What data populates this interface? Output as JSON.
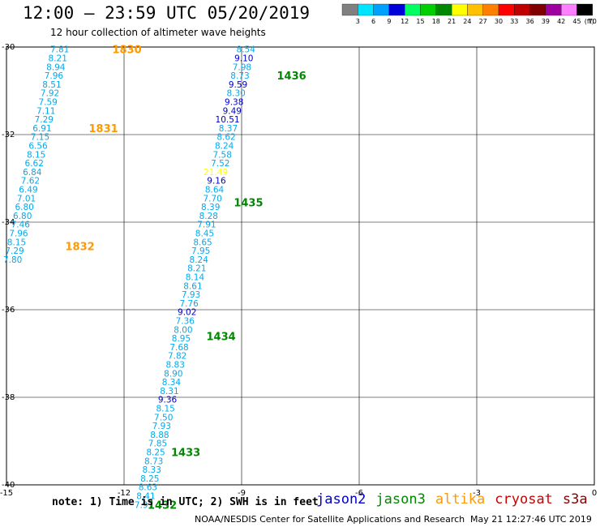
{
  "header": {
    "title": "12:00 – 23:59 UTC 05/20/2019",
    "subtitle": "12 hour collection of altimeter wave heights"
  },
  "colorbar": {
    "unit": "(ft)",
    "ticks": [
      "3",
      "6",
      "9",
      "12",
      "15",
      "18",
      "21",
      "24",
      "27",
      "30",
      "33",
      "36",
      "39",
      "42",
      "45",
      "70"
    ],
    "colors": [
      "#808080",
      "#00e5ff",
      "#00a0ff",
      "#0000dd",
      "#00ff60",
      "#00d000",
      "#008800",
      "#ffff00",
      "#ffc000",
      "#ff8000",
      "#ff0000",
      "#c00000",
      "#800000",
      "#a000a0",
      "#ff80ff",
      "#000000"
    ]
  },
  "footer": {
    "note": "note:  1) Time is in UTC;  2) SWH is in feet",
    "satellites": [
      {
        "name": "jason2",
        "color": "#0000cc"
      },
      {
        "name": "jason3",
        "color": "#008800"
      },
      {
        "name": "altika",
        "color": "#ff9900"
      },
      {
        "name": "cryosat",
        "color": "#cc0000"
      },
      {
        "name": "s3a",
        "color": "#880000"
      }
    ],
    "credit": "NOAA/NESDIS Center for Satellite Applications and Research",
    "timestamp": "May 21 12:27:46 UTC 2019"
  },
  "chart_data": {
    "type": "scatter",
    "title": "12:00 – 23:59 UTC 05/20/2019",
    "subtitle": "12 hour collection of altimeter wave heights",
    "xlim": [
      -15,
      0
    ],
    "ylim": [
      -40,
      -30
    ],
    "xticks": [
      "-15",
      "-12",
      "-9",
      "-6",
      "-3",
      "0"
    ],
    "yticks": [
      "-30",
      "-32",
      "-34",
      "-36",
      "-38",
      "-40"
    ],
    "grid": true,
    "tracks": [
      {
        "satellite": "altika",
        "points": [
          {
            "lon": -13.4,
            "lat": -30.05,
            "value": "7.81"
          },
          {
            "lon": -13.45,
            "lat": -30.25,
            "value": "8.21"
          },
          {
            "lon": -13.5,
            "lat": -30.45,
            "value": "8.94"
          },
          {
            "lon": -13.55,
            "lat": -30.65,
            "value": "7.96"
          },
          {
            "lon": -13.6,
            "lat": -30.85,
            "value": "8.51"
          },
          {
            "lon": -13.65,
            "lat": -31.05,
            "value": "7.92"
          },
          {
            "lon": -13.7,
            "lat": -31.25,
            "value": "7.59"
          },
          {
            "lon": -13.75,
            "lat": -31.45,
            "value": "7.11"
          },
          {
            "lon": -13.8,
            "lat": -31.65,
            "value": "7.29"
          },
          {
            "lon": -13.85,
            "lat": -31.85,
            "value": "6.91"
          },
          {
            "lon": -13.9,
            "lat": -32.05,
            "value": "7.15"
          },
          {
            "lon": -13.95,
            "lat": -32.25,
            "value": "6.56"
          },
          {
            "lon": -14.0,
            "lat": -32.45,
            "value": "8.15"
          },
          {
            "lon": -14.05,
            "lat": -32.65,
            "value": "6.62"
          },
          {
            "lon": -14.1,
            "lat": -32.85,
            "value": "6.84"
          },
          {
            "lon": -14.15,
            "lat": -33.05,
            "value": "7.62"
          },
          {
            "lon": -14.2,
            "lat": -33.25,
            "value": "6.49"
          },
          {
            "lon": -14.25,
            "lat": -33.45,
            "value": "7.01"
          },
          {
            "lon": -14.3,
            "lat": -33.65,
            "value": "6.80"
          },
          {
            "lon": -14.35,
            "lat": -33.85,
            "value": "6.80"
          },
          {
            "lon": -14.4,
            "lat": -34.05,
            "value": "7.46"
          },
          {
            "lon": -14.45,
            "lat": -34.25,
            "value": "7.96"
          },
          {
            "lon": -14.5,
            "lat": -34.45,
            "value": "8.15"
          },
          {
            "lon": -14.55,
            "lat": -34.65,
            "value": "7.29"
          },
          {
            "lon": -14.6,
            "lat": -34.85,
            "value": "7.80"
          }
        ],
        "time_labels": [
          {
            "lon": -12.3,
            "lat": -30.05,
            "label": "1830"
          },
          {
            "lon": -12.9,
            "lat": -31.85,
            "label": "1831"
          },
          {
            "lon": -13.5,
            "lat": -34.55,
            "label": "1832"
          }
        ]
      },
      {
        "satellite": "jason3",
        "points": [
          {
            "lon": -8.65,
            "lat": -30.05,
            "value": "8.54",
            "color": "#00aaee"
          },
          {
            "lon": -8.7,
            "lat": -30.25,
            "value": "9.10",
            "color": "#0000cc"
          },
          {
            "lon": -8.75,
            "lat": -30.45,
            "value": "7.98",
            "color": "#00aaee"
          },
          {
            "lon": -8.8,
            "lat": -30.65,
            "value": "8.73",
            "color": "#00aaee"
          },
          {
            "lon": -8.85,
            "lat": -30.85,
            "value": "9.59",
            "color": "#0000cc"
          },
          {
            "lon": -8.9,
            "lat": -31.05,
            "value": "8.30",
            "color": "#00aaee"
          },
          {
            "lon": -8.95,
            "lat": -31.25,
            "value": "9.38",
            "color": "#0000cc"
          },
          {
            "lon": -9.0,
            "lat": -31.45,
            "value": "9.49",
            "color": "#0000cc"
          },
          {
            "lon": -9.05,
            "lat": -31.65,
            "value": "10.51",
            "color": "#0000cc"
          },
          {
            "lon": -9.1,
            "lat": -31.85,
            "value": "8.37",
            "color": "#00aaee"
          },
          {
            "lon": -9.15,
            "lat": -32.05,
            "value": "8.62",
            "color": "#00aaee"
          },
          {
            "lon": -9.2,
            "lat": -32.25,
            "value": "8.24",
            "color": "#00aaee"
          },
          {
            "lon": -9.25,
            "lat": -32.45,
            "value": "7.58",
            "color": "#00aaee"
          },
          {
            "lon": -9.3,
            "lat": -32.65,
            "value": "7.52",
            "color": "#00aaee"
          },
          {
            "lon": -9.35,
            "lat": -32.85,
            "value": "21.49",
            "color": "#ffff00"
          },
          {
            "lon": -9.4,
            "lat": -33.05,
            "value": "9.16",
            "color": "#0000cc"
          },
          {
            "lon": -9.45,
            "lat": -33.25,
            "value": "8.64",
            "color": "#00aaee"
          },
          {
            "lon": -9.5,
            "lat": -33.45,
            "value": "7.70",
            "color": "#00aaee"
          },
          {
            "lon": -9.55,
            "lat": -33.65,
            "value": "8.39",
            "color": "#00aaee"
          },
          {
            "lon": -9.6,
            "lat": -33.85,
            "value": "8.28",
            "color": "#00aaee"
          },
          {
            "lon": -9.65,
            "lat": -34.05,
            "value": "7.91",
            "color": "#00aaee"
          },
          {
            "lon": -9.7,
            "lat": -34.25,
            "value": "8.45",
            "color": "#00aaee"
          },
          {
            "lon": -9.75,
            "lat": -34.45,
            "value": "8.65",
            "color": "#00aaee"
          },
          {
            "lon": -9.8,
            "lat": -34.65,
            "value": "7.95",
            "color": "#00aaee"
          },
          {
            "lon": -9.85,
            "lat": -34.85,
            "value": "8.24",
            "color": "#00aaee"
          },
          {
            "lon": -9.9,
            "lat": -35.05,
            "value": "8.21",
            "color": "#00aaee"
          },
          {
            "lon": -9.95,
            "lat": -35.25,
            "value": "8.14",
            "color": "#00aaee"
          },
          {
            "lon": -10.0,
            "lat": -35.45,
            "value": "8.61",
            "color": "#00aaee"
          },
          {
            "lon": -10.05,
            "lat": -35.65,
            "value": "7.93",
            "color": "#00aaee"
          },
          {
            "lon": -10.1,
            "lat": -35.85,
            "value": "7.76",
            "color": "#00aaee"
          },
          {
            "lon": -10.15,
            "lat": -36.05,
            "value": "9.02",
            "color": "#0000cc"
          },
          {
            "lon": -10.2,
            "lat": -36.25,
            "value": "7.36",
            "color": "#00aaee"
          },
          {
            "lon": -10.25,
            "lat": -36.45,
            "value": "8.00",
            "color": "#00aaee"
          },
          {
            "lon": -10.3,
            "lat": -36.65,
            "value": "8.95",
            "color": "#00aaee"
          },
          {
            "lon": -10.35,
            "lat": -36.85,
            "value": "7.68",
            "color": "#00aaee"
          },
          {
            "lon": -10.4,
            "lat": -37.05,
            "value": "7.82",
            "color": "#00aaee"
          },
          {
            "lon": -10.45,
            "lat": -37.25,
            "value": "8.83",
            "color": "#00aaee"
          },
          {
            "lon": -10.5,
            "lat": -37.45,
            "value": "8.90",
            "color": "#00aaee"
          },
          {
            "lon": -10.55,
            "lat": -37.65,
            "value": "8.34",
            "color": "#00aaee"
          },
          {
            "lon": -10.6,
            "lat": -37.85,
            "value": "8.31",
            "color": "#00aaee"
          },
          {
            "lon": -10.65,
            "lat": -38.05,
            "value": "9.36",
            "color": "#0000cc"
          },
          {
            "lon": -10.7,
            "lat": -38.25,
            "value": "8.15",
            "color": "#00aaee"
          },
          {
            "lon": -10.75,
            "lat": -38.45,
            "value": "7.50",
            "color": "#00aaee"
          },
          {
            "lon": -10.8,
            "lat": -38.65,
            "value": "7.93",
            "color": "#00aaee"
          },
          {
            "lon": -10.85,
            "lat": -38.85,
            "value": "8.88",
            "color": "#00aaee"
          },
          {
            "lon": -10.9,
            "lat": -39.05,
            "value": "7.85",
            "color": "#00aaee"
          },
          {
            "lon": -10.95,
            "lat": -39.25,
            "value": "8.25",
            "color": "#00aaee"
          },
          {
            "lon": -11.0,
            "lat": -39.45,
            "value": "8.73",
            "color": "#00aaee"
          },
          {
            "lon": -11.05,
            "lat": -39.65,
            "value": "8.33",
            "color": "#00aaee"
          },
          {
            "lon": -11.1,
            "lat": -39.85,
            "value": "8.25",
            "color": "#00aaee"
          },
          {
            "lon": -11.15,
            "lat": -40.05,
            "value": "8.63",
            "color": "#00aaee"
          },
          {
            "lon": -11.2,
            "lat": -40.25,
            "value": "8.41",
            "color": "#00aaee"
          },
          {
            "lon": -11.25,
            "lat": -40.45,
            "value": "7.97",
            "color": "#00aaee"
          }
        ],
        "time_labels": [
          {
            "lon": -8.1,
            "lat": -30.65,
            "label": "1436"
          },
          {
            "lon": -9.2,
            "lat": -33.55,
            "label": "1435"
          },
          {
            "lon": -9.9,
            "lat": -36.6,
            "label": "1434"
          },
          {
            "lon": -10.8,
            "lat": -39.25,
            "label": "1433"
          },
          {
            "lon": -11.4,
            "lat": -40.45,
            "label": "1432"
          }
        ]
      }
    ]
  }
}
